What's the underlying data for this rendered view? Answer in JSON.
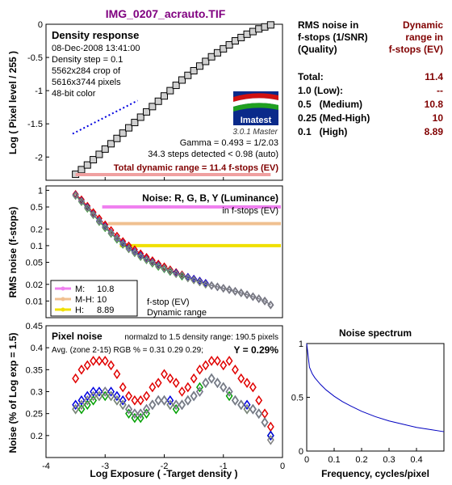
{
  "title": "IMG_0207_acrauto.TIF",
  "info_table": {
    "header_left": [
      "RMS noise in",
      "f-stops (1/SNR)",
      "(Quality)"
    ],
    "header_right": [
      "Dynamic",
      "range in",
      "f-stops (EV)"
    ],
    "rows": [
      {
        "label": "Total:",
        "value": "11.4"
      },
      {
        "label": "1.0   (Low):",
        "value": "--"
      },
      {
        "label": "0.5   (Medium)",
        "value": "10.8"
      },
      {
        "label": "0.25 (Med-High)",
        "value": "10"
      },
      {
        "label": "0.1   (High)",
        "value": "8.89"
      }
    ]
  },
  "density_panel": {
    "heading": "Density response",
    "meta": [
      "08-Dec-2008 13:41:00",
      "Density step = 0.1",
      "5562x284 crop of",
      "5616x3744 pixels",
      "48-bit color"
    ],
    "logo_text": "Imatest",
    "version": "3.0.1  Master",
    "gamma": "Gamma = 0.493 = 1/2.03",
    "steps": "34.3 steps detected < 0.98 (auto)",
    "total_dr": "Total dynamic range = 11.4 f-stops (EV)",
    "ylabel": "Log ( Pixel level / 255 )"
  },
  "noise_panel": {
    "heading": "Noise: R, G, B, Y (Luminance)",
    "sub": "in f-stops (EV)",
    "ylabel": "RMS noise (f-stops)",
    "legend": [
      {
        "label": "M:",
        "value": "10.8",
        "color": "#f080f0"
      },
      {
        "label": "M-H:",
        "value": "10",
        "color": "#f0c090"
      },
      {
        "label": "H:",
        "value": "8.89",
        "color": "#f0e000"
      }
    ],
    "legend_note": [
      "f-stop (EV)",
      "Dynamic range"
    ]
  },
  "pixel_panel": {
    "heading": "Pixel noise",
    "norm": "normalzd to 1.5 density range: 190.5 pixels",
    "avg": "Avg. (zone 2-15) RGB % = 0.31  0.29  0.29;",
    "y_val": "Y = 0.29%",
    "ylabel": "Noise (% of Log exp = 1.5)",
    "xlabel": "Log Exposure ( -Target density )"
  },
  "spectrum_panel": {
    "title": "Noise spectrum",
    "xlabel": "Frequency, cycles/pixel"
  },
  "colors": {
    "red": "#e00000",
    "green": "#00a000",
    "blue": "#0000e0",
    "gray": "#808080",
    "darkred": "#800000",
    "title": "#800080"
  },
  "chart_data": [
    {
      "type": "scatter",
      "name": "density_response",
      "xlim": [
        -4,
        0
      ],
      "ylim": [
        -2.35,
        0
      ],
      "x_ticks": [
        -4,
        -3,
        -2,
        -1,
        0
      ],
      "y_ticks": [
        0,
        -0.5,
        -1,
        -1.5,
        -2
      ],
      "x": [
        -3.5,
        -3.4,
        -3.3,
        -3.2,
        -3.1,
        -3.0,
        -2.9,
        -2.8,
        -2.7,
        -2.6,
        -2.5,
        -2.4,
        -2.3,
        -2.2,
        -2.1,
        -2.0,
        -1.9,
        -1.8,
        -1.7,
        -1.6,
        -1.5,
        -1.4,
        -1.3,
        -1.2,
        -1.1,
        -1.0,
        -0.9,
        -0.8,
        -0.7,
        -0.6,
        -0.5,
        -0.4,
        -0.3,
        -0.2
      ],
      "y": [
        -2.26,
        -2.19,
        -2.12,
        -2.04,
        -1.96,
        -1.88,
        -1.8,
        -1.72,
        -1.64,
        -1.56,
        -1.48,
        -1.4,
        -1.32,
        -1.24,
        -1.16,
        -1.08,
        -1.0,
        -0.92,
        -0.84,
        -0.77,
        -0.7,
        -0.63,
        -0.56,
        -0.49,
        -0.43,
        -0.37,
        -0.31,
        -0.25,
        -0.2,
        -0.15,
        -0.11,
        -0.07,
        -0.04,
        -0.01
      ],
      "fit_line": {
        "x": [
          -3.55,
          -2.45
        ],
        "y": [
          -1.65,
          -1.15
        ]
      }
    },
    {
      "type": "line",
      "name": "rms_noise_fstops",
      "scale": "log",
      "xlim": [
        -4,
        0
      ],
      "ylim": [
        0.005,
        1.2
      ],
      "y_ticks": [
        1,
        0.5,
        0.2,
        0.1,
        0.05,
        0.02,
        0.01
      ],
      "x": [
        -3.5,
        -3.4,
        -3.3,
        -3.2,
        -3.1,
        -3.0,
        -2.9,
        -2.8,
        -2.7,
        -2.6,
        -2.5,
        -2.4,
        -2.3,
        -2.2,
        -2.1,
        -2.0,
        -1.9,
        -1.8,
        -1.7,
        -1.6,
        -1.5,
        -1.4,
        -1.3,
        -1.2,
        -1.1,
        -1.0,
        -0.9,
        -0.8,
        -0.7,
        -0.6,
        -0.5,
        -0.4,
        -0.3,
        -0.2
      ],
      "series": [
        {
          "name": "R",
          "values": [
            0.85,
            0.68,
            0.52,
            0.4,
            0.31,
            0.24,
            0.19,
            0.15,
            0.12,
            0.1,
            0.085,
            0.072,
            0.062,
            0.054,
            0.047,
            0.042,
            0.037,
            0.033,
            0.03,
            0.027,
            0.025,
            0.023,
            0.021,
            0.019,
            0.018,
            0.017,
            0.016,
            0.015,
            0.014,
            0.013,
            0.012,
            0.011,
            0.01,
            0.0085
          ]
        },
        {
          "name": "G",
          "values": [
            0.8,
            0.62,
            0.47,
            0.36,
            0.27,
            0.21,
            0.165,
            0.13,
            0.105,
            0.087,
            0.074,
            0.063,
            0.055,
            0.048,
            0.042,
            0.038,
            0.034,
            0.031,
            0.028,
            0.026,
            0.024,
            0.022,
            0.02,
            0.019,
            0.018,
            0.017,
            0.016,
            0.015,
            0.014,
            0.013,
            0.012,
            0.011,
            0.01,
            0.0085
          ]
        },
        {
          "name": "B",
          "values": [
            0.82,
            0.64,
            0.49,
            0.37,
            0.28,
            0.22,
            0.17,
            0.135,
            0.11,
            0.09,
            0.077,
            0.066,
            0.057,
            0.05,
            0.044,
            0.039,
            0.035,
            0.032,
            0.029,
            0.027,
            0.025,
            0.023,
            0.021,
            0.019,
            0.018,
            0.017,
            0.016,
            0.015,
            0.014,
            0.013,
            0.012,
            0.011,
            0.01,
            0.0085
          ]
        },
        {
          "name": "Y",
          "values": [
            0.81,
            0.63,
            0.48,
            0.365,
            0.275,
            0.215,
            0.168,
            0.133,
            0.107,
            0.088,
            0.075,
            0.064,
            0.056,
            0.049,
            0.043,
            0.039,
            0.035,
            0.031,
            0.029,
            0.026,
            0.024,
            0.022,
            0.02,
            0.019,
            0.018,
            0.017,
            0.016,
            0.015,
            0.014,
            0.013,
            0.012,
            0.011,
            0.01,
            0.0085
          ]
        }
      ],
      "threshold_lines": [
        {
          "level": 0.5,
          "x_start": -3.05,
          "color": "#f080f0"
        },
        {
          "level": 0.25,
          "x_start": -2.95,
          "color": "#f0c090"
        },
        {
          "level": 0.1,
          "x_start": -2.75,
          "color": "#f0e000"
        }
      ]
    },
    {
      "type": "line",
      "name": "pixel_noise",
      "xlim": [
        -4,
        0
      ],
      "ylim": [
        0.15,
        0.45
      ],
      "x_ticks": [
        -4,
        -3,
        -2,
        -1,
        0
      ],
      "y_ticks": [
        0.45,
        0.4,
        0.35,
        0.3,
        0.25,
        0.2
      ],
      "x": [
        -3.5,
        -3.4,
        -3.3,
        -3.2,
        -3.1,
        -3.0,
        -2.9,
        -2.8,
        -2.7,
        -2.6,
        -2.5,
        -2.4,
        -2.3,
        -2.2,
        -2.1,
        -2.0,
        -1.9,
        -1.8,
        -1.7,
        -1.6,
        -1.5,
        -1.4,
        -1.3,
        -1.2,
        -1.1,
        -1.0,
        -0.9,
        -0.8,
        -0.7,
        -0.6,
        -0.5,
        -0.4,
        -0.3,
        -0.2
      ],
      "series": [
        {
          "name": "R",
          "values": [
            0.33,
            0.35,
            0.36,
            0.37,
            0.37,
            0.37,
            0.36,
            0.34,
            0.31,
            0.29,
            0.28,
            0.28,
            0.29,
            0.31,
            0.32,
            0.34,
            0.33,
            0.32,
            0.3,
            0.31,
            0.33,
            0.35,
            0.36,
            0.37,
            0.37,
            0.36,
            0.37,
            0.35,
            0.33,
            0.32,
            0.31,
            0.28,
            0.25,
            0.22
          ]
        },
        {
          "name": "G",
          "values": [
            0.26,
            0.26,
            0.27,
            0.28,
            0.29,
            0.29,
            0.29,
            0.28,
            0.27,
            0.25,
            0.24,
            0.24,
            0.25,
            0.27,
            0.28,
            0.28,
            0.27,
            0.26,
            0.27,
            0.28,
            0.29,
            0.31,
            0.32,
            0.33,
            0.32,
            0.31,
            0.29,
            0.28,
            0.27,
            0.26,
            0.26,
            0.25,
            0.23,
            0.2
          ]
        },
        {
          "name": "B",
          "values": [
            0.27,
            0.28,
            0.29,
            0.3,
            0.3,
            0.3,
            0.3,
            0.29,
            0.28,
            0.26,
            0.25,
            0.25,
            0.26,
            0.27,
            0.28,
            0.28,
            0.28,
            0.27,
            0.27,
            0.28,
            0.29,
            0.3,
            0.32,
            0.33,
            0.32,
            0.31,
            0.3,
            0.28,
            0.27,
            0.27,
            0.26,
            0.25,
            0.23,
            0.2
          ]
        },
        {
          "name": "Y",
          "values": [
            0.26,
            0.27,
            0.28,
            0.29,
            0.29,
            0.3,
            0.29,
            0.28,
            0.27,
            0.26,
            0.25,
            0.25,
            0.26,
            0.27,
            0.28,
            0.28,
            0.27,
            0.27,
            0.27,
            0.28,
            0.29,
            0.3,
            0.32,
            0.33,
            0.32,
            0.31,
            0.3,
            0.28,
            0.27,
            0.26,
            0.26,
            0.25,
            0.23,
            0.19
          ]
        }
      ]
    },
    {
      "type": "line",
      "name": "noise_spectrum",
      "xlim": [
        0,
        0.5
      ],
      "ylim": [
        0,
        1
      ],
      "x_ticks": [
        0,
        0.1,
        0.2,
        0.3,
        0.4
      ],
      "y_ticks": [
        1,
        0.5,
        0
      ],
      "x": [
        0,
        0.01,
        0.02,
        0.03,
        0.05,
        0.07,
        0.1,
        0.13,
        0.16,
        0.2,
        0.25,
        0.3,
        0.35,
        0.4,
        0.45,
        0.5
      ],
      "values": [
        1.0,
        0.78,
        0.72,
        0.68,
        0.62,
        0.57,
        0.51,
        0.46,
        0.42,
        0.37,
        0.32,
        0.28,
        0.25,
        0.22,
        0.2,
        0.18
      ]
    }
  ]
}
